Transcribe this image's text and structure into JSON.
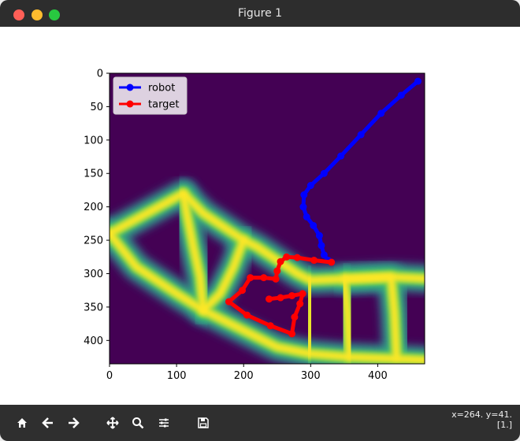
{
  "window": {
    "title": "Figure 1"
  },
  "chart_data": {
    "type": "line",
    "xlim": [
      0,
      470
    ],
    "ylim": [
      435,
      0
    ],
    "x_ticks": [
      "0",
      "100",
      "200",
      "300",
      "400"
    ],
    "y_ticks": [
      "0",
      "50",
      "100",
      "150",
      "200",
      "250",
      "300",
      "350",
      "400"
    ],
    "legend_position": "top-left",
    "grid": false,
    "background_colormap": "viridis",
    "series": [
      {
        "name": "robot",
        "color": "#0000ff",
        "points": [
          [
            460,
            12
          ],
          [
            435,
            33
          ],
          [
            405,
            60
          ],
          [
            375,
            92
          ],
          [
            345,
            124
          ],
          [
            320,
            150
          ],
          [
            300,
            168
          ],
          [
            290,
            182
          ],
          [
            289,
            200
          ],
          [
            294,
            215
          ],
          [
            304,
            228
          ],
          [
            313,
            243
          ],
          [
            316,
            258
          ],
          [
            320,
            272
          ],
          [
            326,
            280
          ],
          [
            331,
            283
          ]
        ]
      },
      {
        "name": "target",
        "color": "#ff0000",
        "points": [
          [
            331,
            283
          ],
          [
            305,
            280
          ],
          [
            280,
            276
          ],
          [
            264,
            275
          ],
          [
            255,
            282
          ],
          [
            250,
            296
          ],
          [
            248,
            308
          ],
          [
            230,
            306
          ],
          [
            210,
            306
          ],
          [
            198,
            325
          ],
          [
            178,
            342
          ],
          [
            205,
            362
          ],
          [
            240,
            378
          ],
          [
            272,
            390
          ],
          [
            276,
            365
          ],
          [
            284,
            345
          ],
          [
            288,
            330
          ],
          [
            272,
            333
          ],
          [
            255,
            336
          ],
          [
            238,
            338
          ]
        ]
      }
    ],
    "field": {
      "lines": [
        [
          [
            0,
            240
          ],
          [
            110,
            180
          ],
          [
            140,
            210
          ],
          [
            200,
            250
          ],
          [
            220,
            260
          ],
          [
            280,
            300
          ],
          [
            300,
            310
          ],
          [
            350,
            308
          ],
          [
            420,
            305
          ],
          [
            480,
            308
          ]
        ],
        [
          [
            0,
            240
          ],
          [
            40,
            290
          ],
          [
            100,
            330
          ],
          [
            140,
            355
          ],
          [
            200,
            385
          ],
          [
            250,
            410
          ],
          [
            300,
            420
          ],
          [
            360,
            425
          ],
          [
            440,
            428
          ],
          [
            480,
            430
          ]
        ],
        [
          [
            110,
            180
          ],
          [
            115,
            210
          ],
          [
            125,
            260
          ],
          [
            135,
            305
          ],
          [
            140,
            355
          ]
        ],
        [
          [
            200,
            250
          ],
          [
            185,
            290
          ],
          [
            165,
            330
          ],
          [
            140,
            355
          ]
        ],
        [
          [
            300,
            310
          ],
          [
            300,
            360
          ],
          [
            297,
            420
          ]
        ],
        [
          [
            350,
            308
          ],
          [
            420,
            305
          ],
          [
            425,
            360
          ],
          [
            428,
            425
          ]
        ],
        [
          [
            350,
            308
          ],
          [
            355,
            360
          ],
          [
            358,
            425
          ]
        ]
      ]
    }
  },
  "toolbar": {
    "home": "home-icon",
    "back": "arrow-left-icon",
    "forward": "arrow-right-icon",
    "pan": "move-icon",
    "zoom": "magnifier-icon",
    "configure": "sliders-icon",
    "save": "floppy-icon"
  },
  "status": {
    "coords": "x=264. y=41.",
    "value": "[1.]"
  }
}
